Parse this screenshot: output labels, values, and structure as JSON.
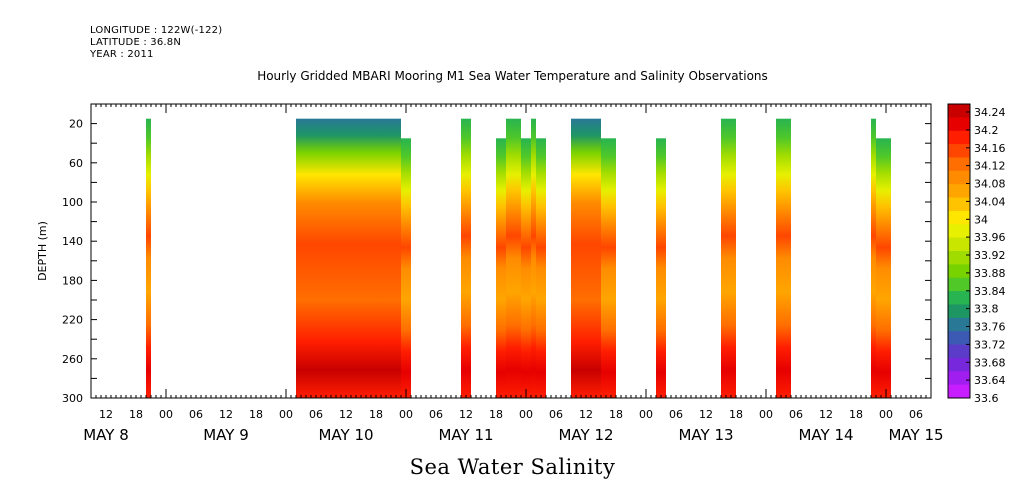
{
  "header": {
    "longitude": "LONGITUDE : 122W(-122)",
    "latitude": "LATITUDE : 36.8N",
    "year": "YEAR : 2011"
  },
  "chart_data": {
    "type": "heatmap",
    "title": "Hourly Gridded MBARI Mooring M1 Sea Water Temperature and Salinity Observations",
    "xlabel": "Sea Water Salinity",
    "ylabel": "DEPTH (m)",
    "x_axis": {
      "unit": "hours since May 8 00:00",
      "range": [
        9,
        177
      ],
      "hour_ticks": [
        {
          "t": 12,
          "label": "12"
        },
        {
          "t": 18,
          "label": "18"
        },
        {
          "t": 24,
          "label": "00"
        },
        {
          "t": 30,
          "label": "06"
        },
        {
          "t": 36,
          "label": "12"
        },
        {
          "t": 42,
          "label": "18"
        },
        {
          "t": 48,
          "label": "00"
        },
        {
          "t": 54,
          "label": "06"
        },
        {
          "t": 60,
          "label": "12"
        },
        {
          "t": 66,
          "label": "18"
        },
        {
          "t": 72,
          "label": "00"
        },
        {
          "t": 78,
          "label": "06"
        },
        {
          "t": 84,
          "label": "12"
        },
        {
          "t": 90,
          "label": "18"
        },
        {
          "t": 96,
          "label": "00"
        },
        {
          "t": 102,
          "label": "06"
        },
        {
          "t": 108,
          "label": "12"
        },
        {
          "t": 114,
          "label": "18"
        },
        {
          "t": 120,
          "label": "00"
        },
        {
          "t": 126,
          "label": "06"
        },
        {
          "t": 132,
          "label": "12"
        },
        {
          "t": 138,
          "label": "18"
        },
        {
          "t": 144,
          "label": "00"
        },
        {
          "t": 150,
          "label": "06"
        },
        {
          "t": 156,
          "label": "12"
        },
        {
          "t": 162,
          "label": "18"
        },
        {
          "t": 168,
          "label": "00"
        },
        {
          "t": 174,
          "label": "06"
        }
      ],
      "day_labels": [
        {
          "t": 12,
          "label": "MAY  8"
        },
        {
          "t": 36,
          "label": "MAY  9"
        },
        {
          "t": 60,
          "label": "MAY 10"
        },
        {
          "t": 84,
          "label": "MAY 11"
        },
        {
          "t": 108,
          "label": "MAY 12"
        },
        {
          "t": 132,
          "label": "MAY 13"
        },
        {
          "t": 156,
          "label": "MAY 14"
        },
        {
          "t": 174,
          "label": "MAY 15"
        }
      ]
    },
    "y_axis": {
      "range": [
        0,
        300
      ],
      "reversed": true,
      "ticks": [
        20,
        60,
        100,
        140,
        180,
        220,
        260,
        300
      ]
    },
    "colorbar": {
      "labels": [
        "34.24",
        "34.2",
        "34.16",
        "34.12",
        "34.08",
        "34.04",
        "34",
        "33.96",
        "33.92",
        "33.88",
        "33.84",
        "33.8",
        "33.76",
        "33.72",
        "33.68",
        "33.64",
        "33.6"
      ],
      "colors": [
        "#c80000",
        "#e60000",
        "#ff1e00",
        "#ff4600",
        "#ff6e00",
        "#ff8c00",
        "#ffa500",
        "#ffc300",
        "#ffe600",
        "#e6f000",
        "#c8e600",
        "#a0dc00",
        "#78d200",
        "#50c828",
        "#28b450",
        "#1e9664",
        "#287896",
        "#3c5ab4",
        "#5a3cc8",
        "#7828dc",
        "#a01ef0",
        "#c81eff"
      ]
    },
    "series": [
      {
        "t0": 20,
        "t1": 21,
        "top": 20
      },
      {
        "t0": 50,
        "t1": 71,
        "top": 20
      },
      {
        "t0": 71,
        "t1": 73,
        "top": 40
      },
      {
        "t0": 83,
        "t1": 85,
        "top": 20
      },
      {
        "t0": 90,
        "t1": 92,
        "top": 40
      },
      {
        "t0": 92,
        "t1": 95,
        "top": 20
      },
      {
        "t0": 95,
        "t1": 97,
        "top": 40
      },
      {
        "t0": 97,
        "t1": 98,
        "top": 20
      },
      {
        "t0": 98,
        "t1": 100,
        "top": 40
      },
      {
        "t0": 105,
        "t1": 111,
        "top": 20
      },
      {
        "t0": 111,
        "t1": 114,
        "top": 40
      },
      {
        "t0": 122,
        "t1": 124,
        "top": 40
      },
      {
        "t0": 135,
        "t1": 138,
        "top": 20
      },
      {
        "t0": 146,
        "t1": 149,
        "top": 20
      },
      {
        "t0": 165,
        "t1": 166,
        "top": 20
      },
      {
        "t0": 166,
        "t1": 169,
        "top": 40
      }
    ]
  }
}
